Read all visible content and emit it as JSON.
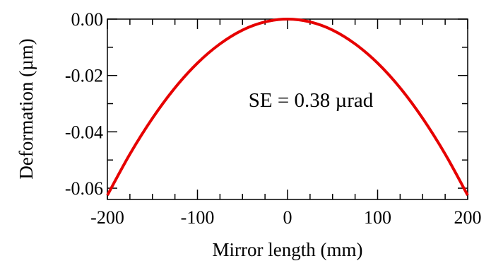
{
  "chart_data": {
    "type": "line",
    "title": "",
    "xlabel": "Mirror length (mm)",
    "ylabel": "Deformation (µm)",
    "xlim": [
      -200,
      200
    ],
    "ylim": [
      -0.064,
      0.0
    ],
    "x_ticks": [
      -200,
      -100,
      0,
      100,
      200
    ],
    "x_tick_labels": [
      "-200",
      "-100",
      "0",
      "100",
      "200"
    ],
    "y_ticks": [
      0.0,
      -0.02,
      -0.04,
      -0.06
    ],
    "y_tick_labels": [
      "0.00",
      "-0.02",
      "-0.04",
      "-0.06"
    ],
    "grid": false,
    "legend": "none",
    "annotation": "SE = 0.38 µrad",
    "series": [
      {
        "color": "#e60000",
        "x": [
          -200,
          -175,
          -150,
          -125,
          -100,
          -75,
          -50,
          -25,
          0,
          25,
          50,
          75,
          100,
          125,
          150,
          175,
          200
        ],
        "y": [
          -0.0625,
          -0.0479,
          -0.0352,
          -0.0244,
          -0.0156,
          -0.0088,
          -0.0039,
          -0.001,
          0.0,
          -0.001,
          -0.0039,
          -0.0088,
          -0.0156,
          -0.0244,
          -0.0352,
          -0.0479,
          -0.0625
        ]
      }
    ]
  }
}
